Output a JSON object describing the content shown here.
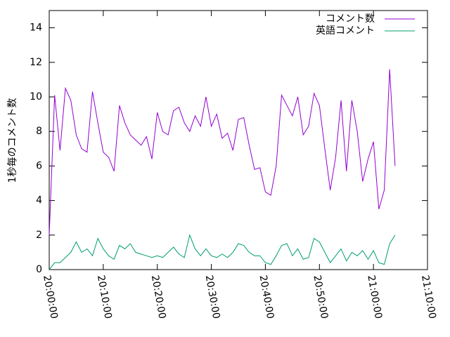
{
  "chart_data": {
    "type": "line",
    "y_label": "1秒毎のコメント数",
    "x": [
      "20:00:00",
      "20:01:00",
      "20:02:00",
      "20:03:00",
      "20:04:00",
      "20:05:00",
      "20:06:00",
      "20:07:00",
      "20:08:00",
      "20:09:00",
      "20:10:00",
      "20:11:00",
      "20:12:00",
      "20:13:00",
      "20:14:00",
      "20:15:00",
      "20:16:00",
      "20:17:00",
      "20:18:00",
      "20:19:00",
      "20:20:00",
      "20:21:00",
      "20:22:00",
      "20:23:00",
      "20:24:00",
      "20:25:00",
      "20:26:00",
      "20:27:00",
      "20:28:00",
      "20:29:00",
      "20:30:00",
      "20:31:00",
      "20:32:00",
      "20:33:00",
      "20:34:00",
      "20:35:00",
      "20:36:00",
      "20:37:00",
      "20:38:00",
      "20:39:00",
      "20:40:00",
      "20:41:00",
      "20:42:00",
      "20:43:00",
      "20:44:00",
      "20:45:00",
      "20:46:00",
      "20:47:00",
      "20:48:00",
      "20:49:00",
      "20:50:00",
      "20:51:00",
      "20:52:00",
      "20:53:00",
      "20:54:00",
      "20:55:00",
      "20:56:00",
      "20:57:00",
      "20:58:00",
      "20:59:00",
      "21:00:00",
      "21:01:00",
      "21:02:00",
      "21:03:00",
      "21:04:00"
    ],
    "series": [
      {
        "name": "コメント数",
        "color": "#9400d3",
        "values": [
          2.0,
          10.1,
          6.9,
          10.5,
          9.8,
          7.8,
          7.0,
          6.8,
          10.3,
          8.5,
          6.8,
          6.5,
          5.7,
          9.5,
          8.5,
          7.8,
          7.5,
          7.2,
          7.7,
          6.4,
          9.1,
          8.0,
          7.8,
          9.2,
          9.4,
          8.5,
          8.0,
          8.9,
          8.3,
          10.0,
          8.3,
          9.0,
          7.6,
          7.9,
          6.9,
          8.7,
          8.8,
          7.2,
          5.8,
          5.9,
          4.5,
          4.3,
          6.0,
          10.1,
          9.5,
          8.9,
          10.0,
          7.8,
          8.3,
          10.2,
          9.5,
          7.0,
          4.6,
          6.5,
          9.8,
          5.7,
          9.8,
          8.0,
          5.1,
          6.4,
          7.4,
          3.5,
          4.6,
          11.6,
          6.0
        ]
      },
      {
        "name": "英語コメント",
        "color": "#009e73",
        "values": [
          0.0,
          0.4,
          0.4,
          0.7,
          1.0,
          1.6,
          1.0,
          1.2,
          0.8,
          1.8,
          1.2,
          0.8,
          0.6,
          1.4,
          1.2,
          1.5,
          1.0,
          0.9,
          0.8,
          0.7,
          0.8,
          0.7,
          1.0,
          1.3,
          0.9,
          0.7,
          2.0,
          1.2,
          0.8,
          1.2,
          0.8,
          0.7,
          0.9,
          0.7,
          1.0,
          1.5,
          1.4,
          1.0,
          0.8,
          0.8,
          0.4,
          0.3,
          0.8,
          1.4,
          1.5,
          0.8,
          1.2,
          0.6,
          0.7,
          1.8,
          1.6,
          1.0,
          0.4,
          0.8,
          1.2,
          0.5,
          1.0,
          0.8,
          1.1,
          0.6,
          1.1,
          0.4,
          0.3,
          1.5,
          2.0
        ]
      }
    ],
    "xlim": [
      "20:00:00",
      "21:10:00"
    ],
    "xticks": [
      "20:00:00",
      "20:10:00",
      "20:20:00",
      "20:30:00",
      "20:40:00",
      "20:50:00",
      "21:00:00",
      "21:10:00"
    ],
    "ylim": [
      0,
      15
    ],
    "yticks": [
      0,
      2,
      4,
      6,
      8,
      10,
      12,
      14
    ],
    "legend": "top-right"
  }
}
